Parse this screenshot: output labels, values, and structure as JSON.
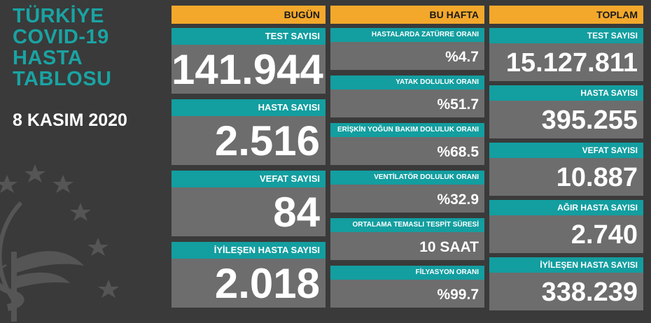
{
  "title_lines": [
    "TÜRKİYE",
    "COVID-19",
    "HASTA",
    "TABLOSU"
  ],
  "date": "8 KASIM 2020",
  "colors": {
    "header": "#f3a82b",
    "label": "#139ea0",
    "value_bg": "#6d6d6d",
    "title": "#1aa3a3",
    "background": "#3a3a3a"
  },
  "emblem": {
    "icon": "ministry-of-health-emblem-icon"
  },
  "today": {
    "header": "BUGÜN",
    "items": [
      {
        "label": "TEST SAYISI",
        "value": "141.944"
      },
      {
        "label": "HASTA SAYISI",
        "value": "2.516"
      },
      {
        "label": "VEFAT SAYISI",
        "value": "84"
      },
      {
        "label": "İYİLEŞEN HASTA SAYISI",
        "value": "2.018"
      }
    ]
  },
  "this_week": {
    "header": "BU HAFTA",
    "items": [
      {
        "label": "HASTALARDA ZATÜRRE ORANI",
        "value": "%4.7"
      },
      {
        "label": "YATAK DOLULUK ORANI",
        "value": "%51.7"
      },
      {
        "label": "ERİŞKİN YOĞUN BAKIM DOLULUK ORANI",
        "value": "%68.5"
      },
      {
        "label": "VENTİLATÖR DOLULUK ORANI",
        "value": "%32.9"
      },
      {
        "label": "ORTALAMA TEMASLI TESPİT SÜRESİ",
        "value": "10 SAAT"
      },
      {
        "label": "FİLYASYON ORANI",
        "value": "%99.7"
      }
    ]
  },
  "total": {
    "header": "TOPLAM",
    "items": [
      {
        "label": "TEST SAYISI",
        "value": "15.127.811"
      },
      {
        "label": "HASTA SAYISI",
        "value": "395.255"
      },
      {
        "label": "VEFAT SAYISI",
        "value": "10.887"
      },
      {
        "label": "AĞIR HASTA SAYISI",
        "value": "2.740"
      },
      {
        "label": "İYİLEŞEN HASTA SAYISI",
        "value": "338.239"
      }
    ]
  }
}
